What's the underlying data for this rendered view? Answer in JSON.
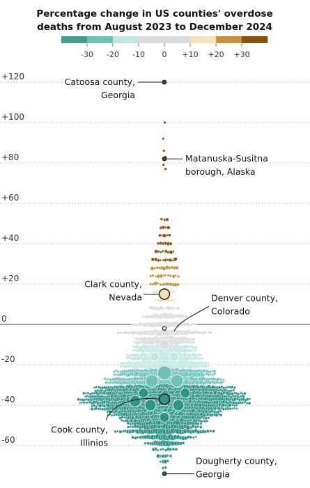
{
  "chart_data": {
    "type": "scatter",
    "title": [
      "Percentage change in US counties' overdose",
      "deaths from August 2023 to December 2024"
    ],
    "ylim": [
      -75,
      125
    ],
    "y_ticks": [
      {
        "value": 120,
        "label": "+120"
      },
      {
        "value": 100,
        "label": "+100"
      },
      {
        "value": 80,
        "label": "+80"
      },
      {
        "value": 60,
        "label": "+60"
      },
      {
        "value": 40,
        "label": "+40"
      },
      {
        "value": 20,
        "label": "+20"
      },
      {
        "value": 0,
        "label": "0"
      },
      {
        "value": -20,
        "label": "-20"
      },
      {
        "value": -40,
        "label": "-40"
      },
      {
        "value": -60,
        "label": "-60"
      }
    ],
    "legend": {
      "bins": [
        {
          "from": -40,
          "to": -30,
          "color": "#3f9d92"
        },
        {
          "from": -30,
          "to": -20,
          "color": "#6dc3b6"
        },
        {
          "from": -20,
          "to": -10,
          "color": "#bfe6e0"
        },
        {
          "from": -10,
          "to": 0,
          "color": "#dcdcdc"
        },
        {
          "from": 0,
          "to": 10,
          "color": "#dcdcdc"
        },
        {
          "from": 10,
          "to": 20,
          "color": "#f5e2b8"
        },
        {
          "from": 20,
          "to": 30,
          "color": "#c8913a"
        },
        {
          "from": 30,
          "to": 40,
          "color": "#8a520f"
        }
      ],
      "labels": [
        {
          "value": -30,
          "text": "-30"
        },
        {
          "value": -20,
          "text": "-20"
        },
        {
          "value": -10,
          "text": "-10"
        },
        {
          "value": 0,
          "text": "0"
        },
        {
          "value": 10,
          "text": "+10"
        },
        {
          "value": 20,
          "text": "+20"
        },
        {
          "value": 30,
          "text": "+30"
        }
      ]
    },
    "color_scale": [
      {
        "min": 30,
        "color": "#8a520f"
      },
      {
        "min": 20,
        "color": "#c8913a"
      },
      {
        "min": 10,
        "color": "#f5e2b8"
      },
      {
        "min": -10,
        "color": "#dcdcdc"
      },
      {
        "min": -20,
        "color": "#bfe6e0"
      },
      {
        "min": -30,
        "color": "#6dc3b6"
      },
      {
        "min": -999,
        "color": "#2f9488"
      }
    ],
    "distribution": [
      {
        "y": 52,
        "n": 3
      },
      {
        "y": 48,
        "n": 4
      },
      {
        "y": 44,
        "n": 5
      },
      {
        "y": 40,
        "n": 6
      },
      {
        "y": 36,
        "n": 8
      },
      {
        "y": 32,
        "n": 10
      },
      {
        "y": 28,
        "n": 11
      },
      {
        "y": 24,
        "n": 12
      },
      {
        "y": 20,
        "n": 12
      },
      {
        "y": 16,
        "n": 9
      },
      {
        "y": 12,
        "n": 8
      },
      {
        "y": 8,
        "n": 12
      },
      {
        "y": 4,
        "n": 18
      },
      {
        "y": 0,
        "n": 26
      },
      {
        "y": -4,
        "n": 38
      },
      {
        "y": -8,
        "n": 50
      },
      {
        "y": -12,
        "n": 62
      },
      {
        "y": -16,
        "n": 74
      },
      {
        "y": -20,
        "n": 86
      },
      {
        "y": -24,
        "n": 98
      },
      {
        "y": -28,
        "n": 115
      },
      {
        "y": -32,
        "n": 135
      },
      {
        "y": -35,
        "n": 155
      },
      {
        "y": -38,
        "n": 165
      },
      {
        "y": -41,
        "n": 140
      },
      {
        "y": -44,
        "n": 110
      },
      {
        "y": -47,
        "n": 85
      },
      {
        "y": -50,
        "n": 60
      },
      {
        "y": -53,
        "n": 40
      },
      {
        "y": -56,
        "n": 26
      },
      {
        "y": -59,
        "n": 16
      },
      {
        "y": -62,
        "n": 10
      },
      {
        "y": -65,
        "n": 6
      },
      {
        "y": -68,
        "n": 4
      },
      {
        "y": -71,
        "n": 2
      }
    ],
    "outliers": [
      100,
      92,
      86,
      83,
      79,
      77
    ],
    "highlighted": [
      {
        "name": "Catoosa county, Georgia",
        "label": [
          "Catoosa county,",
          "Georgia"
        ],
        "y": 120,
        "size": "small",
        "side": "left"
      },
      {
        "name": "Matanuska-Susitna borough, Alaska",
        "label": [
          "Matanuska-Susitna",
          "borough, Alaska"
        ],
        "y": 82,
        "size": "small",
        "side": "right"
      },
      {
        "name": "Clark county, Nevada",
        "label": [
          "Clark county,",
          "Nevada"
        ],
        "y": 15,
        "size": "large",
        "side": "left"
      },
      {
        "name": "Denver county, Colorado",
        "label": [
          "Denver county,",
          "Colorado"
        ],
        "y": -2,
        "size": "small",
        "side": "right"
      },
      {
        "name": "Cook county, Illinios",
        "label": [
          "Cook county,",
          "Illinios"
        ],
        "y": -37,
        "size": "large",
        "side": "left"
      },
      {
        "name": "Dougherty county, Georgia",
        "label": [
          "Dougherty county,",
          "Georgia"
        ],
        "y": -74,
        "size": "small",
        "side": "right"
      }
    ]
  }
}
